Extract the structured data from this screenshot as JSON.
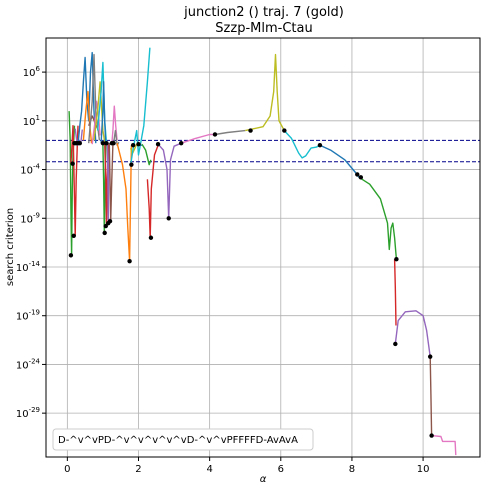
{
  "chart_data": {
    "type": "line",
    "title": "junction2 () traj. 7 (gold)",
    "subtitle": "Szzp-Mlm-Ctau",
    "xlabel": "α",
    "ylabel": "search criterion",
    "xlim": [
      -0.6,
      11.6
    ],
    "ylim_log10": [
      -33.5,
      9.5
    ],
    "yscale": "log",
    "grid": true,
    "x_ticks": [
      0,
      2,
      4,
      6,
      8,
      10
    ],
    "y_ticks": [
      {
        "exp": 6,
        "label": "10^6"
      },
      {
        "exp": 1,
        "label": "10^1"
      },
      {
        "exp": -4,
        "label": "10^-4"
      },
      {
        "exp": -9,
        "label": "10^-9"
      },
      {
        "exp": -14,
        "label": "10^-14"
      },
      {
        "exp": -19,
        "label": "10^-19"
      },
      {
        "exp": -24,
        "label": "10^-24"
      },
      {
        "exp": -29,
        "label": "10^-29"
      }
    ],
    "threshold_lines": [
      {
        "log10": -1.0,
        "color": "#00008b"
      },
      {
        "log10": -3.2,
        "color": "#00008b"
      }
    ],
    "annotation": "D-^v^vPD-^v^v^v^v^vD-^v^vPFFFFD-AvAvA",
    "series": [
      {
        "color": "#2ca02c",
        "points": [
          [
            0.05,
            2
          ],
          [
            0.08,
            -1
          ],
          [
            0.1,
            -8
          ],
          [
            0.12,
            -12.8
          ],
          [
            0.14,
            -6
          ],
          [
            0.16,
            -2.5
          ],
          [
            0.2,
            0.5
          ]
        ]
      },
      {
        "color": "#d62728",
        "points": [
          [
            0.1,
            -3.4
          ],
          [
            0.13,
            -1.5
          ],
          [
            0.16,
            0.5
          ],
          [
            0.2,
            -7
          ],
          [
            0.22,
            -10.8
          ],
          [
            0.25,
            -5
          ],
          [
            0.28,
            -1.5
          ],
          [
            0.3,
            0.5
          ]
        ]
      },
      {
        "color": "#9467bd",
        "points": [
          [
            0.22,
            0.2
          ],
          [
            0.28,
            -1.5
          ],
          [
            0.32,
            -1
          ],
          [
            0.38,
            -1.2
          ],
          [
            0.42,
            0.1
          ]
        ]
      },
      {
        "color": "#1f77b4",
        "points": [
          [
            0.3,
            -1.4
          ],
          [
            0.35,
            0.5
          ],
          [
            0.4,
            2
          ],
          [
            0.45,
            5
          ],
          [
            0.5,
            7.5
          ],
          [
            0.55,
            3
          ],
          [
            0.6,
            1
          ],
          [
            0.65,
            6
          ],
          [
            0.7,
            8
          ],
          [
            0.75,
            2
          ],
          [
            0.8,
            -1.3
          ]
        ]
      },
      {
        "color": "#ff7f0e",
        "points": [
          [
            0.45,
            -1
          ],
          [
            0.52,
            2
          ],
          [
            0.58,
            4
          ],
          [
            0.62,
            1
          ],
          [
            0.68,
            -1.3
          ]
        ]
      },
      {
        "color": "#8c564b",
        "points": [
          [
            0.6,
            0.5
          ],
          [
            0.7,
            1.5
          ],
          [
            0.78,
            0.8
          ],
          [
            0.85,
            0.2
          ]
        ]
      },
      {
        "color": "#e377c2",
        "points": [
          [
            0.7,
            -1.4
          ],
          [
            0.78,
            1
          ],
          [
            0.82,
            3
          ],
          [
            0.88,
            1.5
          ],
          [
            0.92,
            -0.5
          ]
        ]
      },
      {
        "color": "#7f7f7f",
        "points": [
          [
            0.6,
            -1.3
          ],
          [
            0.7,
            3
          ],
          [
            0.75,
            7.8
          ],
          [
            0.8,
            2
          ],
          [
            0.9,
            -1
          ]
        ]
      },
      {
        "color": "#bcbd22",
        "points": [
          [
            0.75,
            -1
          ],
          [
            0.85,
            2
          ],
          [
            0.92,
            5
          ],
          [
            1.0,
            0
          ],
          [
            1.05,
            -1.2
          ]
        ]
      },
      {
        "color": "#17becf",
        "points": [
          [
            0.85,
            0
          ],
          [
            0.95,
            4
          ],
          [
            1.0,
            7
          ],
          [
            1.05,
            1
          ],
          [
            1.1,
            -1.3
          ]
        ]
      },
      {
        "color": "#1f77b4",
        "points": [
          [
            0.95,
            -1.3
          ],
          [
            1.0,
            2
          ],
          [
            1.02,
            5
          ],
          [
            1.05,
            1
          ],
          [
            1.08,
            -1.5
          ]
        ]
      },
      {
        "color": "#2ca02c",
        "points": [
          [
            1.0,
            -1.4
          ],
          [
            1.02,
            -5
          ],
          [
            1.04,
            -10.5
          ],
          [
            1.06,
            -5
          ],
          [
            1.08,
            -1.3
          ]
        ]
      },
      {
        "color": "#d62728",
        "points": [
          [
            1.05,
            -1.2
          ],
          [
            1.08,
            -5
          ],
          [
            1.1,
            -9.8
          ],
          [
            1.12,
            -5
          ],
          [
            1.15,
            -1.4
          ]
        ]
      },
      {
        "color": "#9467bd",
        "points": [
          [
            1.12,
            -1.3
          ],
          [
            1.14,
            -5
          ],
          [
            1.15,
            -9.5
          ],
          [
            1.16,
            -5
          ],
          [
            1.18,
            -1.3
          ]
        ]
      },
      {
        "color": "#8c564b",
        "points": [
          [
            1.18,
            -1.3
          ],
          [
            1.2,
            -5
          ],
          [
            1.22,
            -9.3
          ],
          [
            1.25,
            -5
          ],
          [
            1.28,
            -1.4
          ]
        ]
      },
      {
        "color": "#e377c2",
        "points": [
          [
            1.25,
            -1.4
          ],
          [
            1.28,
            0
          ],
          [
            1.32,
            2.5
          ],
          [
            1.36,
            0.5
          ],
          [
            1.4,
            -1
          ]
        ]
      },
      {
        "color": "#7f7f7f",
        "points": [
          [
            1.3,
            -1.3
          ],
          [
            1.35,
            0
          ],
          [
            1.4,
            -1.5
          ],
          [
            1.45,
            -1.2
          ]
        ]
      },
      {
        "color": "#ff7f0e",
        "points": [
          [
            1.4,
            -1.3
          ],
          [
            1.55,
            -3.5
          ],
          [
            1.65,
            -6
          ],
          [
            1.7,
            -10
          ],
          [
            1.75,
            -13.4
          ],
          [
            1.78,
            -6
          ],
          [
            1.8,
            -1.5
          ]
        ]
      },
      {
        "color": "#bcbd22",
        "points": [
          [
            1.78,
            -1.8
          ],
          [
            1.82,
            -2.4
          ],
          [
            1.85,
            -2.2
          ],
          [
            1.95,
            -1.4
          ]
        ]
      },
      {
        "color": "#17becf",
        "points": [
          [
            1.78,
            -3.5
          ],
          [
            1.85,
            -1.8
          ],
          [
            1.95,
            0
          ],
          [
            2.0,
            -2.5
          ],
          [
            2.05,
            -1.5
          ],
          [
            2.15,
            0.5
          ],
          [
            2.25,
            5
          ],
          [
            2.32,
            8.5
          ]
        ]
      },
      {
        "color": "#1f77b4",
        "points": [
          [
            2.0,
            -1.4
          ],
          [
            2.05,
            -1.5
          ],
          [
            2.1,
            -1.5
          ]
        ]
      },
      {
        "color": "#2ca02c",
        "points": [
          [
            2.1,
            -1.4
          ],
          [
            2.2,
            -2
          ],
          [
            2.3,
            -3.5
          ],
          [
            2.35,
            -3
          ]
        ]
      },
      {
        "color": "#d62728",
        "points": [
          [
            2.25,
            -5
          ],
          [
            2.3,
            -8
          ],
          [
            2.33,
            -11
          ],
          [
            2.36,
            -6
          ],
          [
            2.45,
            -2.5
          ],
          [
            2.55,
            -1.5
          ]
        ]
      },
      {
        "color": "#9467bd",
        "points": [
          [
            2.55,
            -1.4
          ],
          [
            2.7,
            -2
          ],
          [
            2.8,
            -4
          ],
          [
            2.85,
            -9
          ],
          [
            2.9,
            -3
          ],
          [
            3.0,
            -1.6
          ],
          [
            3.2,
            -1.3
          ]
        ]
      },
      {
        "color": "#e377c2",
        "points": [
          [
            3.2,
            -1.3
          ],
          [
            3.6,
            -0.8
          ],
          [
            4.0,
            -0.4
          ],
          [
            4.15,
            -0.4
          ]
        ]
      },
      {
        "color": "#7f7f7f",
        "points": [
          [
            4.15,
            -0.4
          ],
          [
            4.5,
            -0.2
          ],
          [
            5.0,
            0
          ]
        ]
      },
      {
        "color": "#bcbd22",
        "points": [
          [
            5.0,
            0
          ],
          [
            5.5,
            0.4
          ],
          [
            5.7,
            1.5
          ],
          [
            5.8,
            4
          ],
          [
            5.85,
            7.8
          ],
          [
            5.9,
            4
          ],
          [
            5.95,
            1
          ],
          [
            6.1,
            0
          ]
        ]
      },
      {
        "color": "#17becf",
        "points": [
          [
            6.1,
            0
          ],
          [
            6.3,
            -0.8
          ],
          [
            6.5,
            -2.3
          ],
          [
            6.6,
            -2.8
          ],
          [
            6.7,
            -2.6
          ],
          [
            6.85,
            -1.8
          ],
          [
            7.0,
            -1.7
          ],
          [
            7.1,
            -1.5
          ]
        ]
      },
      {
        "color": "#1f77b4",
        "points": [
          [
            7.1,
            -1.5
          ],
          [
            7.4,
            -2
          ],
          [
            7.8,
            -3
          ],
          [
            8.1,
            -4.3
          ],
          [
            8.2,
            -4.8
          ]
        ]
      },
      {
        "color": "#2ca02c",
        "points": [
          [
            8.2,
            -4.8
          ],
          [
            8.5,
            -5.5
          ],
          [
            8.8,
            -7
          ],
          [
            9.0,
            -9.5
          ],
          [
            9.05,
            -12.2
          ],
          [
            9.1,
            -10
          ],
          [
            9.15,
            -9.5
          ],
          [
            9.2,
            -11
          ],
          [
            9.25,
            -13.2
          ]
        ]
      },
      {
        "color": "#d62728",
        "points": [
          [
            9.2,
            -13.2
          ],
          [
            9.22,
            -16
          ],
          [
            9.24,
            -20
          ]
        ]
      },
      {
        "color": "#9467bd",
        "points": [
          [
            9.22,
            -21.9
          ],
          [
            9.3,
            -19.5
          ],
          [
            9.5,
            -18.6
          ],
          [
            9.8,
            -18.5
          ],
          [
            10.0,
            -19
          ],
          [
            10.1,
            -20.5
          ],
          [
            10.2,
            -23.2
          ]
        ]
      },
      {
        "color": "#8c564b",
        "points": [
          [
            10.2,
            -23.2
          ],
          [
            10.22,
            -27
          ],
          [
            10.24,
            -31.2
          ]
        ]
      },
      {
        "color": "#e377c2",
        "points": [
          [
            10.24,
            -31.3
          ],
          [
            10.5,
            -31.4
          ],
          [
            10.55,
            -31.9
          ],
          [
            10.9,
            -31.9
          ],
          [
            10.92,
            -33.3
          ]
        ]
      }
    ],
    "markers": [
      [
        0.1,
        -12.8
      ],
      [
        0.15,
        -3.4
      ],
      [
        0.18,
        -10.8
      ],
      [
        0.2,
        -1.3
      ],
      [
        0.25,
        -1.3
      ],
      [
        0.3,
        -1.3
      ],
      [
        0.35,
        -1.3
      ],
      [
        1.0,
        -1.3
      ],
      [
        1.05,
        -10.5
      ],
      [
        1.08,
        -9.8
      ],
      [
        1.1,
        -1.3
      ],
      [
        1.15,
        -9.5
      ],
      [
        1.2,
        -9.3
      ],
      [
        1.25,
        -1.3
      ],
      [
        1.3,
        -1.3
      ],
      [
        1.75,
        -13.4
      ],
      [
        1.8,
        -3.5
      ],
      [
        1.85,
        -1.5
      ],
      [
        2.0,
        -1.4
      ],
      [
        2.35,
        -11
      ],
      [
        2.55,
        -1.4
      ],
      [
        2.85,
        -9
      ],
      [
        3.2,
        -1.3
      ],
      [
        4.15,
        -0.4
      ],
      [
        5.15,
        0
      ],
      [
        6.1,
        0
      ],
      [
        7.1,
        -1.5
      ],
      [
        8.15,
        -4.5
      ],
      [
        8.25,
        -4.8
      ],
      [
        9.25,
        -13.2
      ],
      [
        9.22,
        -21.9
      ],
      [
        10.2,
        -23.2
      ],
      [
        10.24,
        -31.3
      ]
    ]
  }
}
